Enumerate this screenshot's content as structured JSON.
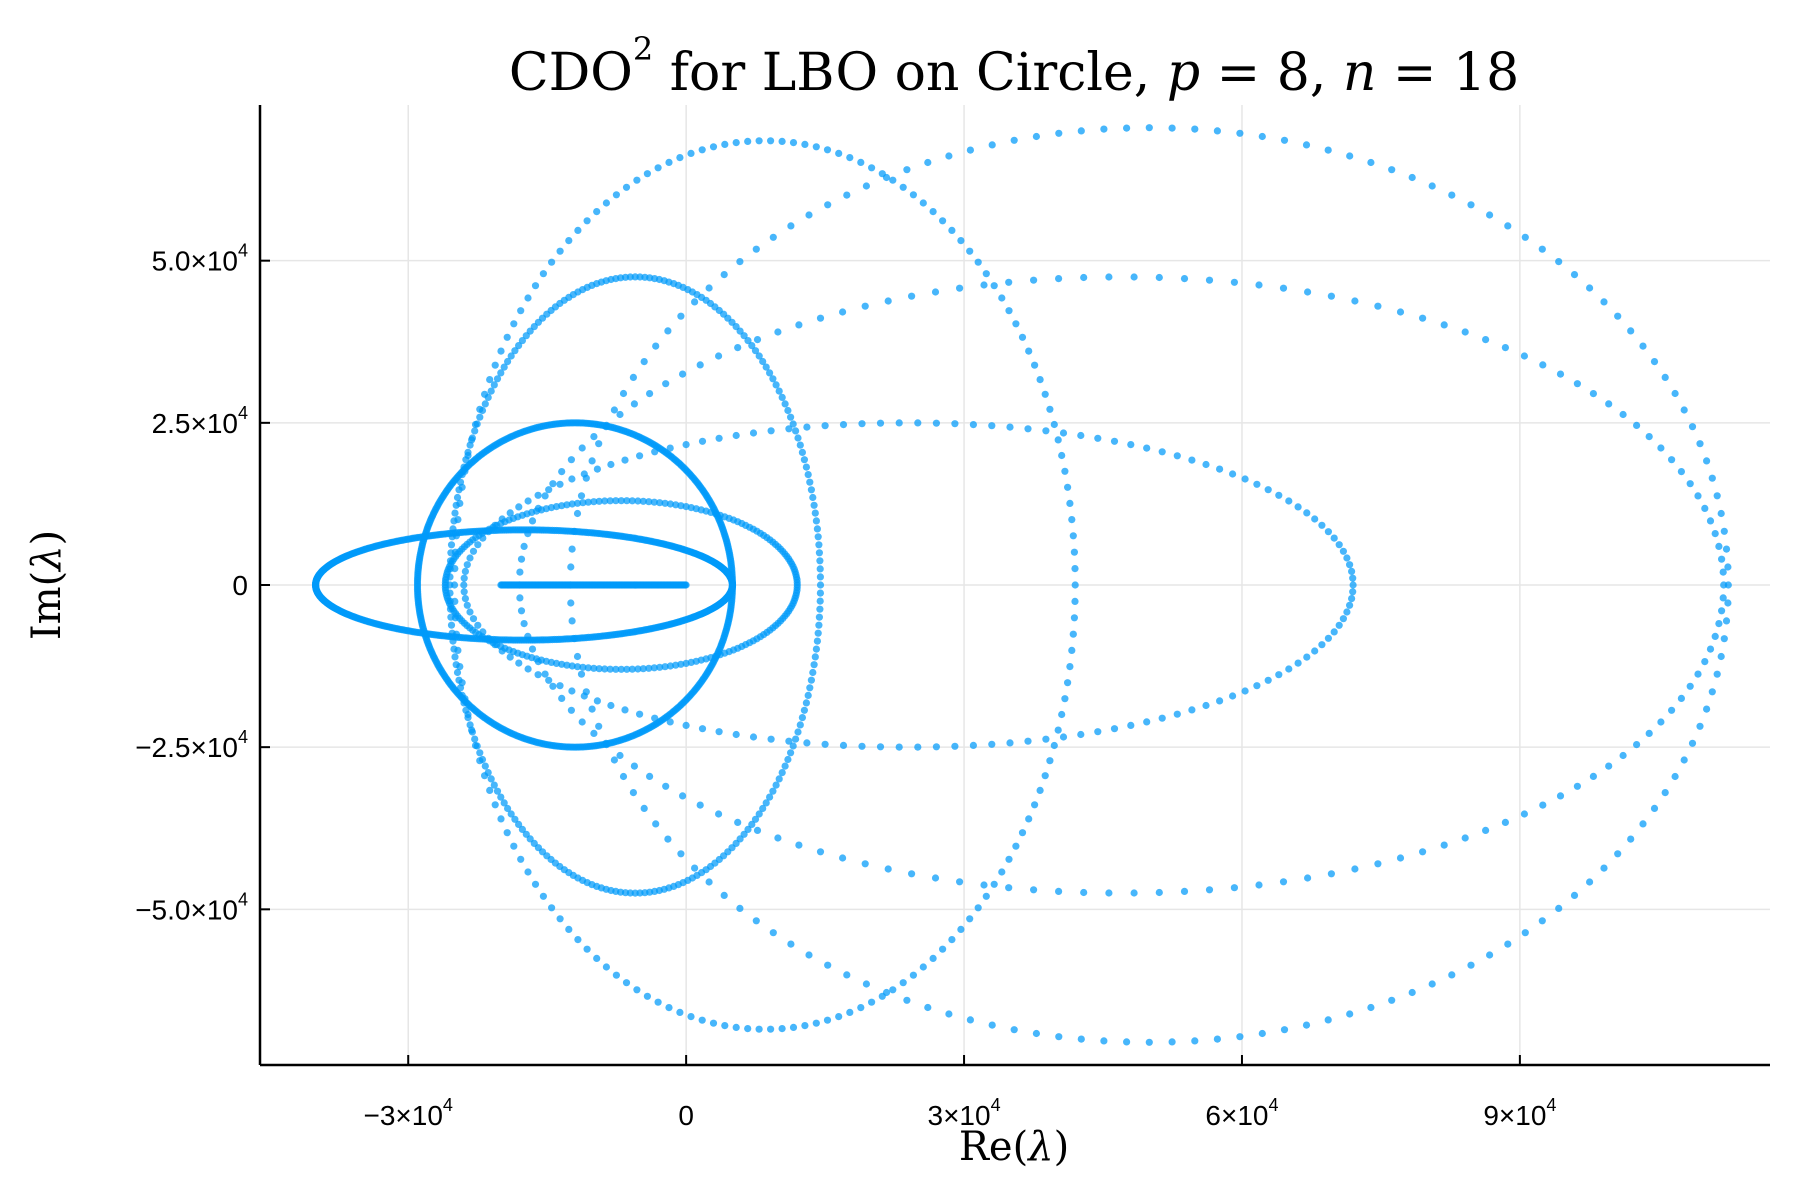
{
  "chart_data": {
    "type": "scatter",
    "title": {
      "prefix": "CDO",
      "superscript": "2",
      "middle": " for LBO on Circle, ",
      "p_symbol": "p",
      "p_eq": " = 8, ",
      "n_symbol": "n",
      "n_eq": " = 18"
    },
    "xlabel": {
      "pre": "Re(",
      "symbol": "λ",
      "post": ")"
    },
    "ylabel": {
      "pre": "Im(",
      "symbol": "λ",
      "post": ")"
    },
    "xlim": [
      -46000,
      117000
    ],
    "ylim": [
      -74000,
      74000
    ],
    "grid": true,
    "legend": "none",
    "marker_color": "#009AFA",
    "x_ticks": [
      {
        "value": -30000,
        "mantissa": "−3×10",
        "exponent": "4"
      },
      {
        "value": 0,
        "mantissa": "0",
        "exponent": ""
      },
      {
        "value": 30000,
        "mantissa": "3×10",
        "exponent": "4"
      },
      {
        "value": 60000,
        "mantissa": "6×10",
        "exponent": "4"
      },
      {
        "value": 90000,
        "mantissa": "9×10",
        "exponent": "4"
      }
    ],
    "y_ticks": [
      {
        "value": 50000,
        "mantissa": "5.0×10",
        "exponent": "4"
      },
      {
        "value": 25000,
        "mantissa": "2.5×10",
        "exponent": "4"
      },
      {
        "value": 0,
        "mantissa": "0",
        "exponent": ""
      },
      {
        "value": -25000,
        "mantissa": "−2.5×10",
        "exponent": "4"
      },
      {
        "value": -50000,
        "mantissa": "−5.0×10",
        "exponent": "4"
      }
    ],
    "series": [
      {
        "center": [
          50000,
          0
        ],
        "rx": 62500,
        "ry": 70500,
        "points": 160
      },
      {
        "center": [
          47000,
          0
        ],
        "rx": 65000,
        "ry": 47500,
        "points": 150
      },
      {
        "center": [
          8500,
          0
        ],
        "rx": 33500,
        "ry": 68500,
        "points": 170
      },
      {
        "center": [
          24000,
          0
        ],
        "rx": 48000,
        "ry": 25000,
        "points": 150
      },
      {
        "center": [
          -5500,
          0
        ],
        "rx": 20000,
        "ry": 47500,
        "points": 240
      },
      {
        "center": [
          -7000,
          0
        ],
        "rx": 19000,
        "ry": 13000,
        "points": 200
      },
      {
        "center": [
          -12000,
          0
        ],
        "rx": 17000,
        "ry": 25000,
        "points": 500
      },
      {
        "center": [
          -17500,
          0
        ],
        "rx": 22500,
        "ry": 8500,
        "points": 600
      },
      {
        "line": [
          [
            -20000,
            0
          ],
          [
            0,
            0
          ]
        ],
        "points": 200
      }
    ]
  }
}
